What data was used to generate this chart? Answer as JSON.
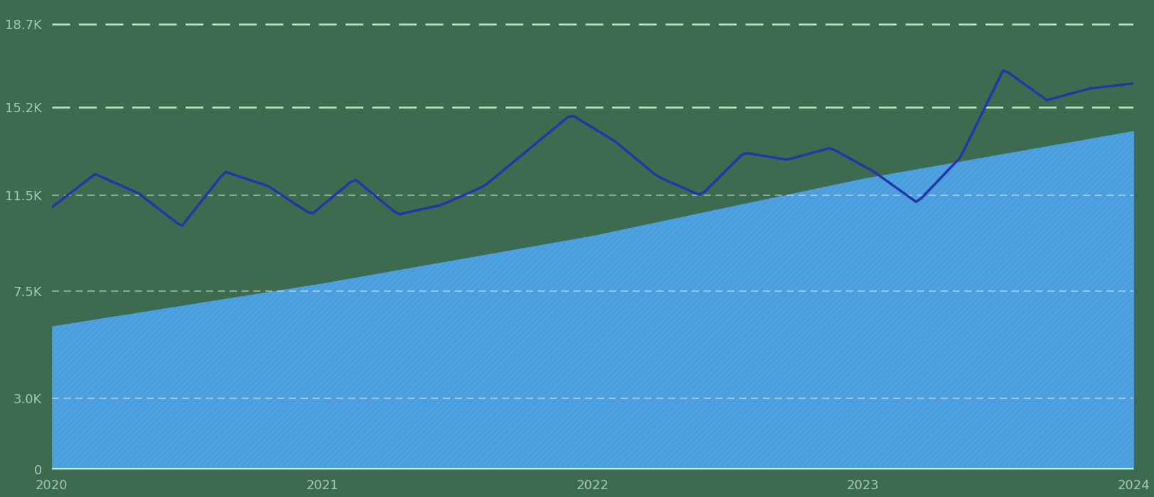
{
  "background_color": "#3d6b4f",
  "fill_color": "#4a9edb",
  "hatch_color": "#5aacf5",
  "line_color": "#2535a8",
  "line_width": 2.5,
  "x_labels": [
    "2020",
    "2021",
    "2022",
    "2023",
    "2024"
  ],
  "ylim": [
    0,
    19500
  ],
  "yticks": [
    0,
    3000,
    7500,
    11500,
    15200,
    18700
  ],
  "ytick_labels": [
    "0",
    "3.0K",
    "7.5K",
    "11.5K",
    "15.2K",
    "18.7K"
  ],
  "special_yticks": [
    15200,
    18700
  ],
  "white_grid_yticks": [
    3000,
    7500,
    11500
  ],
  "white_grid_color": "#ffffff",
  "green_line_color": "#c0f0c8",
  "tick_color": "#a8c8b0",
  "bottom_strip_color": "#c0f0c0",
  "ctrl_x": [
    0,
    4,
    8,
    12,
    16,
    20,
    24,
    28,
    32,
    36,
    40,
    44,
    48,
    52,
    56,
    60,
    64,
    68,
    72,
    76,
    80,
    84,
    88,
    92,
    96,
    100
  ],
  "ctrl_y": [
    11000,
    12400,
    11600,
    10200,
    12500,
    11900,
    10700,
    12200,
    10700,
    11100,
    11900,
    13400,
    14900,
    13800,
    12300,
    11500,
    13300,
    13000,
    13500,
    12500,
    11200,
    13100,
    16800,
    15500,
    16000,
    16200
  ],
  "base_ctrl_x": [
    0,
    25,
    50,
    75,
    100
  ],
  "base_ctrl_y": [
    6000,
    7800,
    9800,
    12200,
    14200
  ]
}
